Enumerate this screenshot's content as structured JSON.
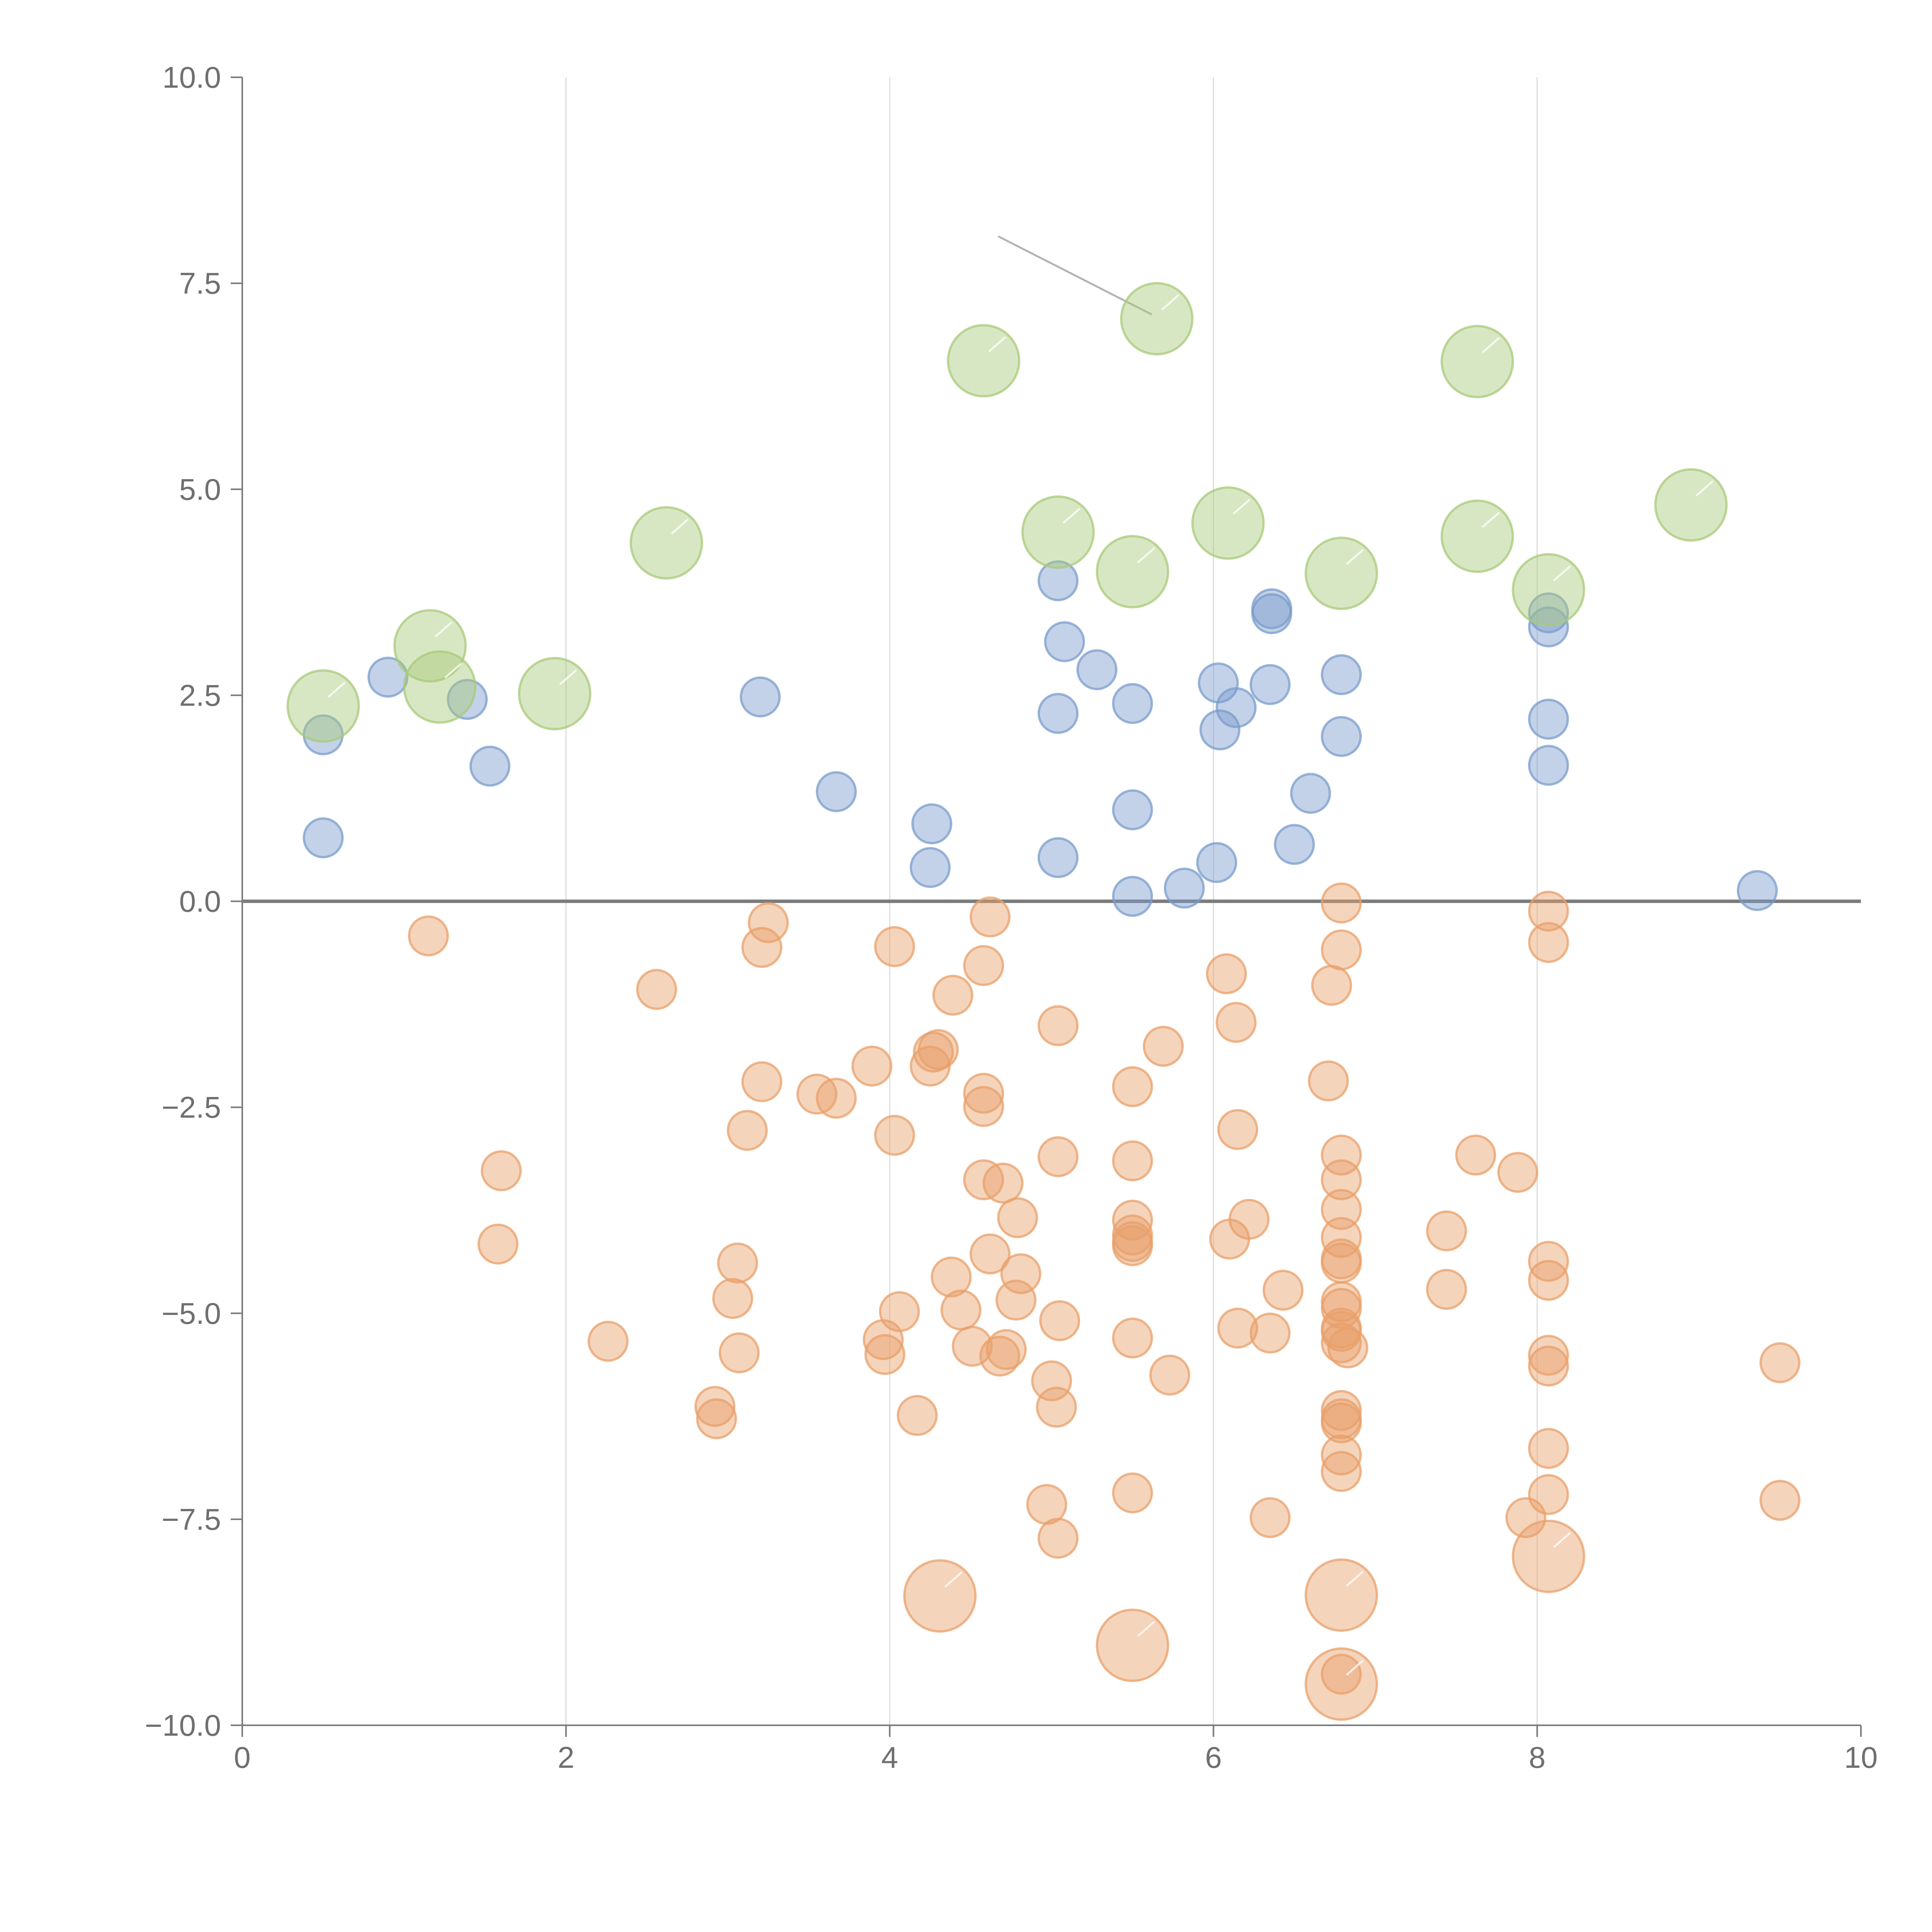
{
  "chart_data": {
    "type": "scatter",
    "title": "",
    "xlabel": "",
    "ylabel": "",
    "xlim": [
      0,
      10
    ],
    "ylim": [
      -10,
      10
    ],
    "grid": "vertical lines at major x ticks",
    "reference_line": {
      "axis": "y",
      "value": 0
    },
    "x_ticks": [
      0,
      2,
      4,
      6,
      8,
      10
    ],
    "x_tick_labels": [
      "0",
      "2",
      "4",
      "6",
      "8",
      "10"
    ],
    "y_ticks": [
      10,
      7.5,
      5,
      2.5,
      0,
      -2.5,
      -5,
      -7.5,
      -10
    ],
    "y_tick_labels": [
      "10.0",
      "7.5",
      "5.0",
      "2.5",
      "0.0",
      "−2.5",
      "−5.0",
      "−7.5",
      "−10.0"
    ],
    "annotation_lines": [
      {
        "from": [
          4.67,
          8.07
        ],
        "to": [
          5.62,
          7.12
        ]
      }
    ],
    "colors": {
      "blue": "#7a9ccc",
      "green": "#a9c979",
      "orange": "#e8a06a"
    },
    "series": [
      {
        "name": "orange-small",
        "color": "#e8a06a",
        "size": "small",
        "points": [
          [
            1.15,
            -0.42
          ],
          [
            1.6,
            -3.27
          ],
          [
            1.58,
            -4.16
          ],
          [
            2.26,
            -5.34
          ],
          [
            2.56,
            -1.07
          ],
          [
            2.92,
            -6.13
          ],
          [
            2.93,
            -6.28
          ],
          [
            3.03,
            -4.82
          ],
          [
            3.06,
            -4.39
          ],
          [
            3.07,
            -5.48
          ],
          [
            3.12,
            -2.78
          ],
          [
            3.21,
            -0.56
          ],
          [
            3.21,
            -2.19
          ],
          [
            3.25,
            -0.26
          ],
          [
            3.55,
            -2.34
          ],
          [
            3.67,
            -2.39
          ],
          [
            3.89,
            -2.0
          ],
          [
            3.96,
            -5.32
          ],
          [
            3.97,
            -5.5
          ],
          [
            4.03,
            -0.55
          ],
          [
            4.03,
            -2.84
          ],
          [
            4.06,
            -4.98
          ],
          [
            4.17,
            -6.24
          ],
          [
            4.25,
            -2.0
          ],
          [
            4.27,
            -1.83
          ],
          [
            4.3,
            -1.8
          ],
          [
            4.38,
            -4.56
          ],
          [
            4.39,
            -1.14
          ],
          [
            4.44,
            -4.96
          ],
          [
            4.51,
            -5.4
          ],
          [
            4.58,
            -0.78
          ],
          [
            4.58,
            -2.33
          ],
          [
            4.58,
            -2.49
          ],
          [
            4.58,
            -3.38
          ],
          [
            4.62,
            -4.28
          ],
          [
            4.62,
            -0.19
          ],
          [
            4.68,
            -5.52
          ],
          [
            4.7,
            -3.42
          ],
          [
            4.72,
            -5.44
          ],
          [
            4.78,
            -4.84
          ],
          [
            4.79,
            -3.84
          ],
          [
            4.81,
            -4.52
          ],
          [
            4.97,
            -7.32
          ],
          [
            5.0,
            -5.82
          ],
          [
            5.03,
            -6.14
          ],
          [
            5.04,
            -1.51
          ],
          [
            5.04,
            -3.1
          ],
          [
            5.04,
            -7.73
          ],
          [
            5.05,
            -5.09
          ],
          [
            5.5,
            -2.25
          ],
          [
            5.5,
            -3.15
          ],
          [
            5.5,
            -3.87
          ],
          [
            5.5,
            -4.05
          ],
          [
            5.5,
            -4.13
          ],
          [
            5.5,
            -4.18
          ],
          [
            5.5,
            -5.3
          ],
          [
            5.5,
            -7.18
          ],
          [
            5.69,
            -1.76
          ],
          [
            5.73,
            -5.75
          ],
          [
            6.08,
            -0.88
          ],
          [
            6.1,
            -4.1
          ],
          [
            6.14,
            -1.47
          ],
          [
            6.15,
            -2.77
          ],
          [
            6.15,
            -5.18
          ],
          [
            6.22,
            -3.86
          ],
          [
            6.35,
            -5.24
          ],
          [
            6.35,
            -7.48
          ],
          [
            6.43,
            -4.72
          ],
          [
            6.71,
            -2.18
          ],
          [
            6.73,
            -1.02
          ],
          [
            6.79,
            -0.02
          ],
          [
            6.79,
            -0.59
          ],
          [
            6.79,
            -3.08
          ],
          [
            6.79,
            -3.38
          ],
          [
            6.79,
            -3.74
          ],
          [
            6.79,
            -4.08
          ],
          [
            6.79,
            -4.34
          ],
          [
            6.79,
            -4.39
          ],
          [
            6.79,
            -4.86
          ],
          [
            6.79,
            -4.94
          ],
          [
            6.79,
            -5.18
          ],
          [
            6.79,
            -5.22
          ],
          [
            6.79,
            -5.36
          ],
          [
            6.79,
            -6.18
          ],
          [
            6.79,
            -6.28
          ],
          [
            6.79,
            -6.33
          ],
          [
            6.79,
            -6.72
          ],
          [
            6.79,
            -6.92
          ],
          [
            6.79,
            -9.38
          ],
          [
            6.83,
            -5.42
          ],
          [
            7.44,
            -4.0
          ],
          [
            7.44,
            -4.71
          ],
          [
            7.62,
            -3.08
          ],
          [
            7.88,
            -3.29
          ],
          [
            7.93,
            -7.48
          ],
          [
            8.07,
            -0.12
          ],
          [
            8.07,
            -0.5
          ],
          [
            8.07,
            -4.37
          ],
          [
            8.07,
            -4.6
          ],
          [
            8.07,
            -5.51
          ],
          [
            8.07,
            -5.64
          ],
          [
            8.07,
            -6.64
          ],
          [
            8.07,
            -7.2
          ],
          [
            9.5,
            -5.6
          ],
          [
            9.5,
            -7.27
          ]
        ]
      },
      {
        "name": "orange-large",
        "color": "#e8a06a",
        "size": "large",
        "points": [
          [
            4.31,
            -8.43
          ],
          [
            5.5,
            -9.03
          ],
          [
            6.79,
            -8.42
          ],
          [
            6.79,
            -9.5
          ],
          [
            8.07,
            -7.95
          ]
        ]
      },
      {
        "name": "blue",
        "color": "#7a9ccc",
        "size": "small",
        "points": [
          [
            0.5,
            0.77
          ],
          [
            0.5,
            2.02
          ],
          [
            0.9,
            2.72
          ],
          [
            1.39,
            2.45
          ],
          [
            1.53,
            1.64
          ],
          [
            3.2,
            2.48
          ],
          [
            3.67,
            1.33
          ],
          [
            4.25,
            0.41
          ],
          [
            4.26,
            0.94
          ],
          [
            5.04,
            0.53
          ],
          [
            5.04,
            2.28
          ],
          [
            5.04,
            3.89
          ],
          [
            5.08,
            3.15
          ],
          [
            5.28,
            2.81
          ],
          [
            5.5,
            0.06
          ],
          [
            5.5,
            1.11
          ],
          [
            5.5,
            2.4
          ],
          [
            5.82,
            0.16
          ],
          [
            6.02,
            0.47
          ],
          [
            6.03,
            2.65
          ],
          [
            6.04,
            2.08
          ],
          [
            6.14,
            2.35
          ],
          [
            6.35,
            2.63
          ],
          [
            6.36,
            3.49
          ],
          [
            6.36,
            3.55
          ],
          [
            6.5,
            0.69
          ],
          [
            6.6,
            1.31
          ],
          [
            6.79,
            2.0
          ],
          [
            6.79,
            2.75
          ],
          [
            8.07,
            1.65
          ],
          [
            8.07,
            2.21
          ],
          [
            8.07,
            3.33
          ],
          [
            8.07,
            3.5
          ],
          [
            9.36,
            0.13
          ]
        ]
      },
      {
        "name": "green",
        "color": "#a9c979",
        "size": "large",
        "points": [
          [
            0.5,
            2.37
          ],
          [
            1.16,
            3.1
          ],
          [
            1.22,
            2.6
          ],
          [
            1.93,
            2.52
          ],
          [
            2.62,
            4.35
          ],
          [
            4.58,
            6.56
          ],
          [
            5.04,
            4.48
          ],
          [
            5.5,
            4.0
          ],
          [
            5.65,
            7.07
          ],
          [
            6.09,
            4.59
          ],
          [
            6.79,
            3.98
          ],
          [
            7.63,
            6.55
          ],
          [
            7.63,
            4.43
          ],
          [
            8.07,
            3.78
          ],
          [
            8.95,
            4.81
          ]
        ]
      }
    ]
  }
}
